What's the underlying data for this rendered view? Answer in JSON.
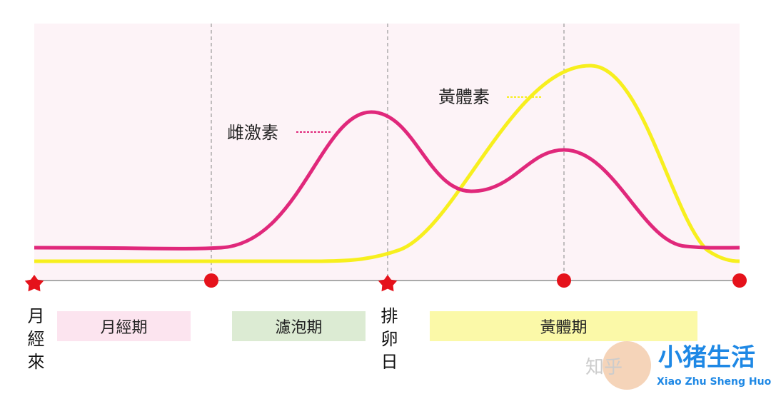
{
  "curves": {
    "estrogen": {
      "label": "雌激素"
    },
    "progesterone": {
      "label": "黃體素"
    }
  },
  "markers": {
    "menstruation_start": "月經來",
    "ovulation": "排卵日"
  },
  "phases": [
    "月經期",
    "濾泡期",
    "黃體期"
  ],
  "watermark": {
    "site": "知乎",
    "brand": "小猪生活",
    "brand_latin": "Xiao Zhu Sheng Huo"
  }
}
